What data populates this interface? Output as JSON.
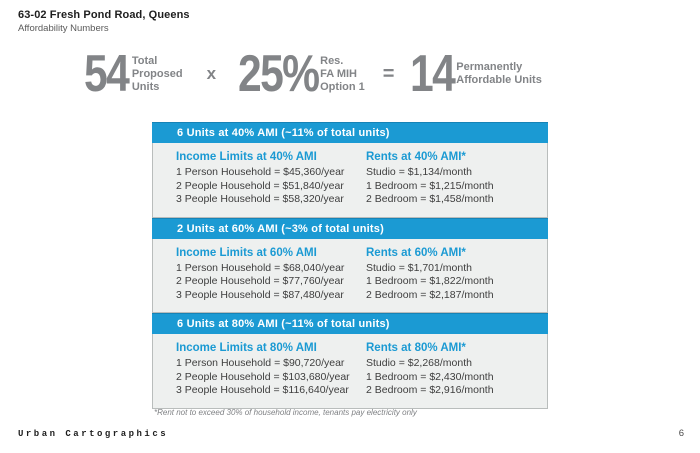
{
  "header": {
    "title": "63-02 Fresh Pond Road, Queens",
    "subtitle": "Affordability Numbers"
  },
  "equation": {
    "value1": "54",
    "label1": "Total\nProposed\nUnits",
    "operator1": "x",
    "value2": "25%",
    "label2": "Res.\nFA MIH\nOption 1",
    "operator2": "=",
    "value3": "14",
    "label3": "Permanently\nAffordable Units"
  },
  "sections": [
    {
      "header": "6 Units at 40% AMI (~11% of total units)",
      "income": {
        "heading": "Income Limits at 40% AMI",
        "rows": [
          "1 Person Household = $45,360/year",
          "2 People Household = $51,840/year",
          "3 People Household = $58,320/year"
        ]
      },
      "rents": {
        "heading": "Rents at 40% AMI*",
        "rows": [
          "Studio = $1,134/month",
          "1 Bedroom = $1,215/month",
          "2 Bedroom = $1,458/month"
        ]
      }
    },
    {
      "header": "2 Units at 60% AMI (~3% of total units)",
      "income": {
        "heading": "Income Limits at 60% AMI",
        "rows": [
          "1 Person Household = $68,040/year",
          "2 People Household = $77,760/year",
          "3 People Household = $87,480/year"
        ]
      },
      "rents": {
        "heading": "Rents at 60% AMI*",
        "rows": [
          "Studio = $1,701/month",
          "1 Bedroom = $1,822/month",
          "2 Bedroom = $2,187/month"
        ]
      }
    },
    {
      "header": "6 Units at 80% AMI (~11% of total units)",
      "income": {
        "heading": "Income Limits at 80% AMI",
        "rows": [
          "1 Person Household = $90,720/year",
          "2 People Household = $103,680/year",
          "3 People Household = $116,640/year"
        ]
      },
      "rents": {
        "heading": "Rents at 80% AMI*",
        "rows": [
          "Studio = $2,268/month",
          "1 Bedroom = $2,430/month",
          "2 Bedroom = $2,916/month"
        ]
      }
    }
  ],
  "footnote": "*Rent not to exceed 30% of household income, tenants pay electricity only",
  "footer": {
    "brand": "Urban Cartographics",
    "page": "6"
  },
  "colors": {
    "accent_blue": "#1b9ad3",
    "number_gray": "#828487",
    "content_bg": "#eef0ef"
  }
}
